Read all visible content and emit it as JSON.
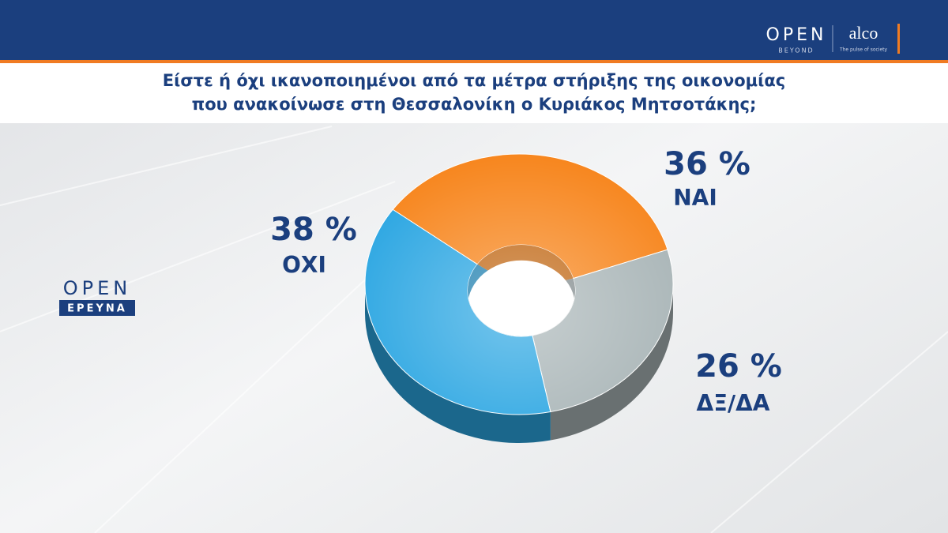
{
  "branding": {
    "logo": "OPEN",
    "logo_sub": "BEYOND",
    "partner": "alco",
    "partner_sub": "The pulse of society",
    "side_logo": "OPEN",
    "side_logo_sub": "ΕΡΕΥΝΑ"
  },
  "chart_data": {
    "type": "pie",
    "title": [
      "Είστε ή όχι ικανοποιημένοι από τα μέτρα στήριξης της οικονομίας",
      "που ανακοίνωσε στη Θεσσαλονίκη ο Κυριάκος Μητσοτάκης;"
    ],
    "categories": [
      "ΝΑΙ",
      "ΔΞ/ΔΑ",
      "ΟΧΙ"
    ],
    "values": [
      36,
      26,
      38
    ],
    "value_labels": [
      "36 %",
      "26 %",
      "38 %"
    ],
    "colors": [
      "#f7861e",
      "#a9b5b7",
      "#2ba6e2"
    ]
  }
}
